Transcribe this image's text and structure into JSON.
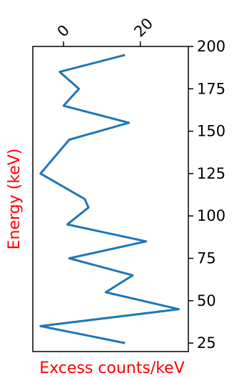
{
  "chart_data": {
    "type": "line",
    "title": "",
    "xlabel": "Excess counts/keV",
    "ylabel": "Energy (keV)",
    "label_color": "#ff0000",
    "series_color": "#1f77b4",
    "xlim": [
      -8,
      32.5
    ],
    "ylim": [
      20,
      200
    ],
    "xticks": [
      0,
      20
    ],
    "xtick_labels": [
      "0",
      "20"
    ],
    "yticks": [
      25,
      50,
      75,
      100,
      125,
      150,
      175,
      200
    ],
    "ytick_labels": [
      "25",
      "50",
      "75",
      "100",
      "125",
      "150",
      "175",
      "200"
    ],
    "x_axis_position": "top",
    "y_axis_position": "right",
    "grid": false,
    "series": [
      {
        "x": [
          16,
          -6,
          30,
          11,
          18,
          1.5,
          21.5,
          1,
          6.5,
          5.5,
          -6,
          1.5,
          17,
          0,
          4,
          -1,
          16
        ],
        "y": [
          25,
          35,
          45,
          55,
          65,
          75,
          85,
          95,
          105,
          110,
          125,
          145,
          155,
          165,
          175,
          185,
          195
        ]
      }
    ]
  }
}
